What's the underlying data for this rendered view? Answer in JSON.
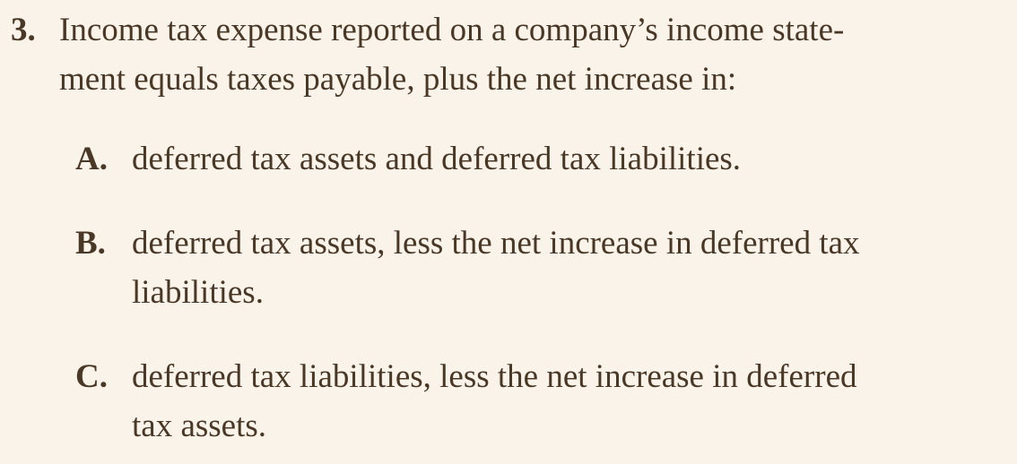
{
  "question": {
    "number": "3.",
    "stem_lines": [
      "Income tax expense reported on a company’s income state-",
      "ment equals taxes payable, plus the net increase in:"
    ]
  },
  "options": [
    {
      "letter": "A.",
      "lines": [
        "deferred tax assets and deferred tax liabilities."
      ]
    },
    {
      "letter": "B.",
      "lines": [
        "deferred tax assets, less the net increase in deferred tax",
        "liabilities."
      ]
    },
    {
      "letter": "C.",
      "lines": [
        "deferred tax liabilities, less the net increase in deferred",
        "tax assets."
      ]
    }
  ]
}
